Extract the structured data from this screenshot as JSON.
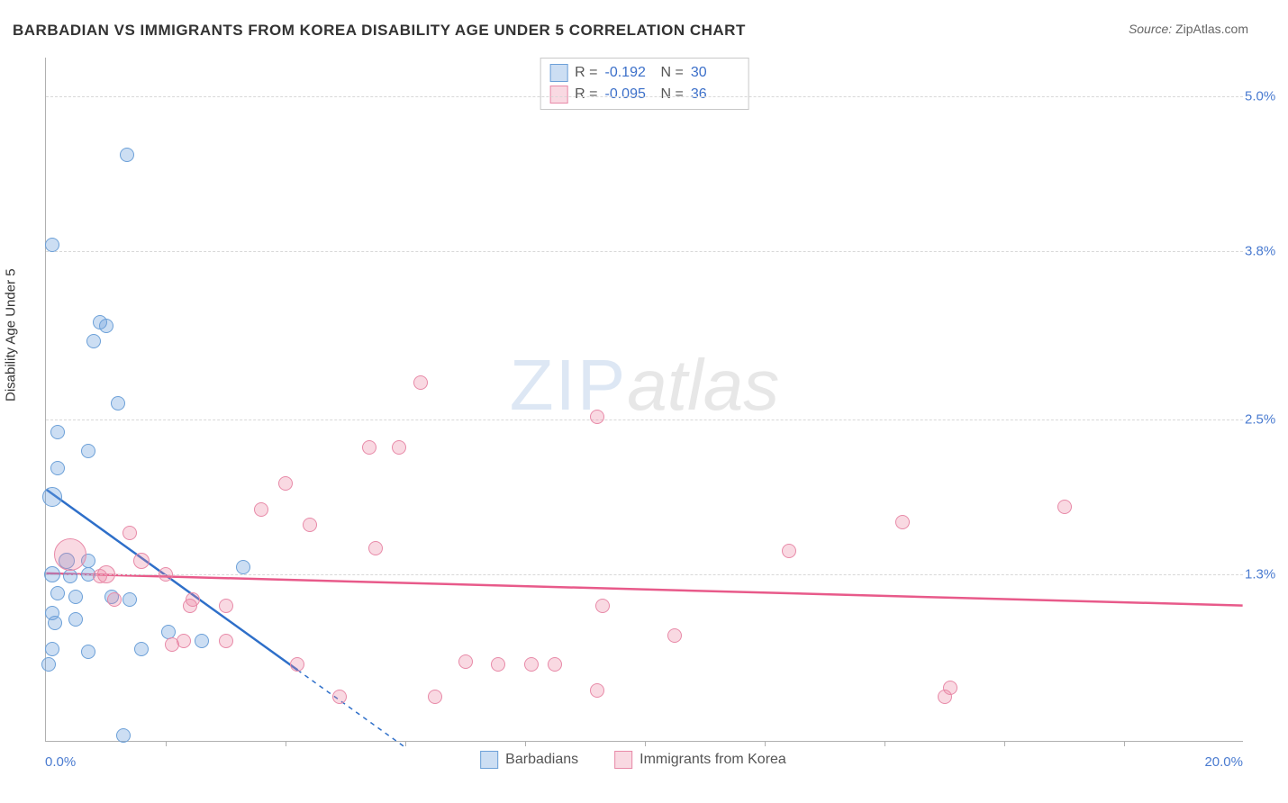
{
  "title": "BARBADIAN VS IMMIGRANTS FROM KOREA DISABILITY AGE UNDER 5 CORRELATION CHART",
  "source_label": "Source:",
  "source_value": "ZipAtlas.com",
  "ylabel": "Disability Age Under 5",
  "watermark_zip": "ZIP",
  "watermark_atlas": "atlas",
  "chart": {
    "type": "scatter",
    "xlim": [
      0,
      20
    ],
    "ylim": [
      0,
      5.3
    ],
    "x_min_label": "0.0%",
    "x_max_label": "20.0%",
    "yticks": [
      {
        "v": 1.3,
        "label": "1.3%"
      },
      {
        "v": 2.5,
        "label": "2.5%"
      },
      {
        "v": 3.8,
        "label": "3.8%"
      },
      {
        "v": 5.0,
        "label": "5.0%"
      }
    ],
    "xtick_marks": [
      2,
      4,
      6,
      8,
      10,
      12,
      14,
      16,
      18
    ],
    "background_color": "#ffffff",
    "grid_color": "#d8d8d8",
    "axis_color": "#b0b0b0",
    "tick_label_color": "#4a7bd0",
    "series": [
      {
        "name": "Barbadians",
        "fill": "rgba(110,160,220,0.35)",
        "stroke": "#6ca0d8",
        "line_color": "#2e6fc9",
        "r_value": "-0.192",
        "n_value": "30",
        "trend": {
          "x1": 0,
          "y1": 1.95,
          "x2": 4.2,
          "y2": 0.55,
          "dash_x2": 6.0,
          "dash_y2": -0.05
        },
        "points": [
          {
            "x": 0.1,
            "y": 3.85,
            "r": 8
          },
          {
            "x": 1.35,
            "y": 4.55,
            "r": 8
          },
          {
            "x": 0.9,
            "y": 3.25,
            "r": 8
          },
          {
            "x": 1.0,
            "y": 3.22,
            "r": 8
          },
          {
            "x": 0.8,
            "y": 3.1,
            "r": 8
          },
          {
            "x": 1.2,
            "y": 2.62,
            "r": 8
          },
          {
            "x": 0.2,
            "y": 2.4,
            "r": 8
          },
          {
            "x": 0.7,
            "y": 2.25,
            "r": 8
          },
          {
            "x": 0.2,
            "y": 2.12,
            "r": 8
          },
          {
            "x": 0.1,
            "y": 1.9,
            "r": 11
          },
          {
            "x": 0.35,
            "y": 1.4,
            "r": 9
          },
          {
            "x": 0.7,
            "y": 1.4,
            "r": 8
          },
          {
            "x": 0.7,
            "y": 1.3,
            "r": 8
          },
          {
            "x": 3.3,
            "y": 1.35,
            "r": 8
          },
          {
            "x": 0.2,
            "y": 1.15,
            "r": 8
          },
          {
            "x": 0.5,
            "y": 1.12,
            "r": 8
          },
          {
            "x": 1.1,
            "y": 1.12,
            "r": 8
          },
          {
            "x": 1.4,
            "y": 1.1,
            "r": 8
          },
          {
            "x": 0.1,
            "y": 1.0,
            "r": 8
          },
          {
            "x": 0.15,
            "y": 0.92,
            "r": 8
          },
          {
            "x": 0.5,
            "y": 0.95,
            "r": 8
          },
          {
            "x": 2.05,
            "y": 0.85,
            "r": 8
          },
          {
            "x": 0.1,
            "y": 0.72,
            "r": 8
          },
          {
            "x": 0.7,
            "y": 0.7,
            "r": 8
          },
          {
            "x": 0.05,
            "y": 0.6,
            "r": 8
          },
          {
            "x": 1.6,
            "y": 0.72,
            "r": 8
          },
          {
            "x": 2.6,
            "y": 0.78,
            "r": 8
          },
          {
            "x": 1.3,
            "y": 0.05,
            "r": 8
          },
          {
            "x": 0.1,
            "y": 1.3,
            "r": 9
          },
          {
            "x": 0.4,
            "y": 1.28,
            "r": 8
          }
        ]
      },
      {
        "name": "Immigrants from Korea",
        "fill": "rgba(235,130,160,0.30)",
        "stroke": "#e88aa8",
        "line_color": "#e85a8a",
        "r_value": "-0.095",
        "n_value": "36",
        "trend": {
          "x1": 0,
          "y1": 1.3,
          "x2": 20,
          "y2": 1.05
        },
        "points": [
          {
            "x": 0.4,
            "y": 1.45,
            "r": 18
          },
          {
            "x": 1.0,
            "y": 1.3,
            "r": 10
          },
          {
            "x": 1.6,
            "y": 1.4,
            "r": 9
          },
          {
            "x": 2.0,
            "y": 1.3,
            "r": 8
          },
          {
            "x": 1.4,
            "y": 1.62,
            "r": 8
          },
          {
            "x": 3.6,
            "y": 1.8,
            "r": 8
          },
          {
            "x": 4.0,
            "y": 2.0,
            "r": 8
          },
          {
            "x": 5.4,
            "y": 2.28,
            "r": 8
          },
          {
            "x": 5.9,
            "y": 2.28,
            "r": 8
          },
          {
            "x": 4.4,
            "y": 1.68,
            "r": 8
          },
          {
            "x": 5.5,
            "y": 1.5,
            "r": 8
          },
          {
            "x": 6.25,
            "y": 2.78,
            "r": 8
          },
          {
            "x": 9.2,
            "y": 2.52,
            "r": 8
          },
          {
            "x": 2.4,
            "y": 1.05,
            "r": 8
          },
          {
            "x": 3.0,
            "y": 1.05,
            "r": 8
          },
          {
            "x": 2.1,
            "y": 0.75,
            "r": 8
          },
          {
            "x": 2.3,
            "y": 0.78,
            "r": 8
          },
          {
            "x": 4.2,
            "y": 0.6,
            "r": 8
          },
          {
            "x": 4.9,
            "y": 0.35,
            "r": 8
          },
          {
            "x": 6.5,
            "y": 0.35,
            "r": 8
          },
          {
            "x": 7.0,
            "y": 0.62,
            "r": 8
          },
          {
            "x": 7.55,
            "y": 0.6,
            "r": 8
          },
          {
            "x": 8.1,
            "y": 0.6,
            "r": 8
          },
          {
            "x": 8.5,
            "y": 0.6,
            "r": 8
          },
          {
            "x": 9.2,
            "y": 0.4,
            "r": 8
          },
          {
            "x": 9.3,
            "y": 1.05,
            "r": 8
          },
          {
            "x": 10.5,
            "y": 0.82,
            "r": 8
          },
          {
            "x": 12.4,
            "y": 1.48,
            "r": 8
          },
          {
            "x": 14.3,
            "y": 1.7,
            "r": 8
          },
          {
            "x": 15.0,
            "y": 0.35,
            "r": 8
          },
          {
            "x": 15.1,
            "y": 0.42,
            "r": 8
          },
          {
            "x": 17.0,
            "y": 1.82,
            "r": 8
          },
          {
            "x": 1.15,
            "y": 1.1,
            "r": 8
          },
          {
            "x": 2.45,
            "y": 1.1,
            "r": 8
          },
          {
            "x": 0.9,
            "y": 1.28,
            "r": 8
          },
          {
            "x": 3.0,
            "y": 0.78,
            "r": 8
          }
        ]
      }
    ]
  },
  "stats_box": {
    "r_label": "R =",
    "n_label": "N ="
  },
  "legend": {
    "series1": "Barbadians",
    "series2": "Immigrants from Korea"
  }
}
